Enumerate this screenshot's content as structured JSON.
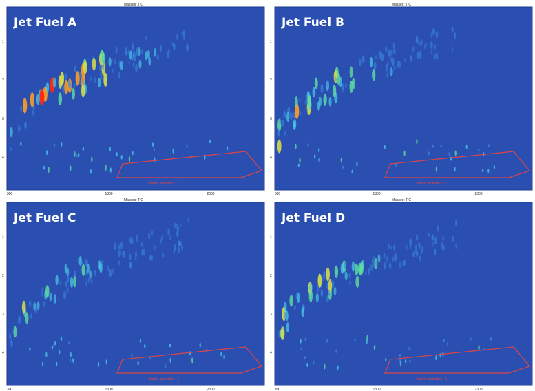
{
  "colors": {
    "background": "#2a4fb0",
    "frame": "#1b3b8f",
    "region": "#e04545",
    "low": "#3a7ad6",
    "high": "#ff2a10"
  },
  "chart_data": [
    {
      "type": "heatmap",
      "title": "Jet Fuel A",
      "header": "Masses: TIC",
      "x_ticks": [
        "300",
        "1300",
        "2300"
      ],
      "y_ticks": [
        "1",
        "2",
        "3",
        "4"
      ],
      "region_label": "diaptic aromatics - 1",
      "intensity": 1.0
    },
    {
      "type": "heatmap",
      "title": "Jet Fuel B",
      "header": "Masses: TIC",
      "x_ticks": [
        "300",
        "1300",
        "2300"
      ],
      "y_ticks": [
        "1",
        "2",
        "3",
        "4"
      ],
      "region_label": "diaptic aromatics - 1",
      "intensity": 0.85
    },
    {
      "type": "heatmap",
      "title": "Jet Fuel C",
      "header": "Masses: TIC",
      "x_ticks": [
        "300",
        "1300",
        "2300"
      ],
      "y_ticks": [
        "1",
        "2",
        "3",
        "4"
      ],
      "region_label": "diaptic aromatics - 1",
      "intensity": 0.7
    },
    {
      "type": "heatmap",
      "title": "Jet Fuel D",
      "header": "Masses: TIC",
      "x_ticks": [
        "300",
        "1300",
        "2300"
      ],
      "y_ticks": [
        "1",
        "2",
        "3",
        "4"
      ],
      "region_label": "diaptic aromatics - 1",
      "intensity": 0.78
    }
  ]
}
